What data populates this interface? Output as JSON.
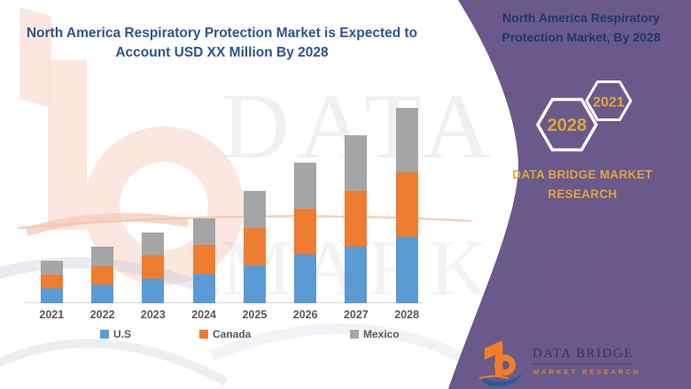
{
  "header": {
    "title_line1": "North America Respiratory Protection Market is Expected to",
    "title_line2": "Account USD XX Million By 2028",
    "title_color": "#2D5491"
  },
  "side_panel": {
    "background_color": "#695A8B",
    "heading_line1": "North America Respiratory",
    "heading_line2": "Protection Market, By 2028",
    "heading_color": "#1F3864",
    "hexagon_back_label": "2021",
    "hexagon_front_label": "2028",
    "hexagon_label_color": "#E2A33D",
    "hexagon_outline_color": "#FFFFFF",
    "brand_line1": "DATA BRIDGE MARKET",
    "brand_line2": "RESEARCH",
    "brand_color": "#E2A33D"
  },
  "logo": {
    "name_text": "DATA BRIDGE",
    "subtitle_text": "MARKET RESEARCH",
    "orange": "#F07E26",
    "blue": "#2B5A9E"
  },
  "watermark": {
    "line1": "DATA BRIDGE",
    "line2": "MARKET RESEARCH"
  },
  "chart_data": {
    "type": "bar",
    "stacked": true,
    "title": "North America Respiratory Protection Market is Expected to Account USD XX Million By 2028",
    "xlabel": "",
    "ylabel": "",
    "value_units": "relative scale — no numeric axis shown in source (values estimated from bar heights, 2028 total = 100)",
    "categories": [
      "2021",
      "2022",
      "2023",
      "2024",
      "2025",
      "2026",
      "2027",
      "2028"
    ],
    "series": [
      {
        "name": "U.S",
        "color": "#5B9BD5",
        "values": [
          7.5,
          9.6,
          12.5,
          14.8,
          19.5,
          24.9,
          29.1,
          33.8
        ]
      },
      {
        "name": "Canada",
        "color": "#ED7D31",
        "values": [
          7.1,
          9.5,
          12.1,
          15.1,
          19.0,
          23.7,
          28.5,
          33.2
        ]
      },
      {
        "name": "Mexico",
        "color": "#A5A5A5",
        "values": [
          7.2,
          9.8,
          11.8,
          13.5,
          19.0,
          23.4,
          28.6,
          33.0
        ]
      }
    ],
    "ylim": [
      0,
      105
    ],
    "grid": false,
    "legend_position": "bottom",
    "axis_line_color": "#D9D9D9",
    "tick_label_color": "#595959"
  }
}
